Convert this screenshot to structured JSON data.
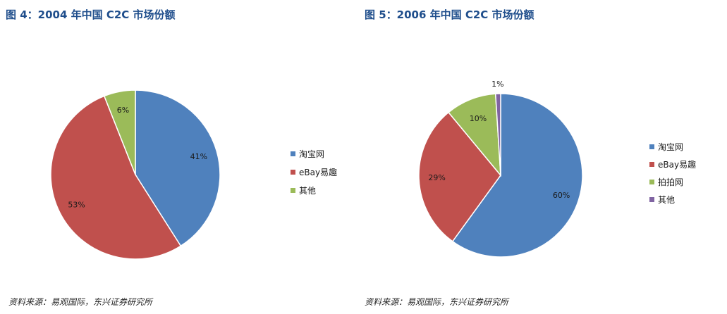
{
  "figures": [
    {
      "title": "图 4：2004 年中国 C2C 市场份额",
      "source": "资料来源：易观国际，东兴证券研究所"
    },
    {
      "title": "图 5：2006 年中国 C2C 市场份额",
      "source": "资料来源：易观国际，东兴证券研究所"
    }
  ],
  "chart_data": [
    {
      "type": "pie",
      "title": "图 4：2004 年中国 C2C 市场份额",
      "legend_position": "right",
      "slices": [
        {
          "name": "淘宝网",
          "value": 41,
          "label": "41%",
          "color": "#4f81bd"
        },
        {
          "name": "eBay易趣",
          "value": 53,
          "label": "53%",
          "color": "#c0504d"
        },
        {
          "name": "其他",
          "value": 6,
          "label": "6%",
          "color": "#9bbb59"
        }
      ]
    },
    {
      "type": "pie",
      "title": "图 5：2006 年中国 C2C 市场份额",
      "legend_position": "right",
      "slices": [
        {
          "name": "淘宝网",
          "value": 60,
          "label": "60%",
          "color": "#4f81bd"
        },
        {
          "name": "eBay易趣",
          "value": 29,
          "label": "29%",
          "color": "#c0504d"
        },
        {
          "name": "拍拍网",
          "value": 10,
          "label": "10%",
          "color": "#9bbb59"
        },
        {
          "name": "其他",
          "value": 1,
          "label": "1%",
          "color": "#8064a2"
        }
      ]
    }
  ]
}
